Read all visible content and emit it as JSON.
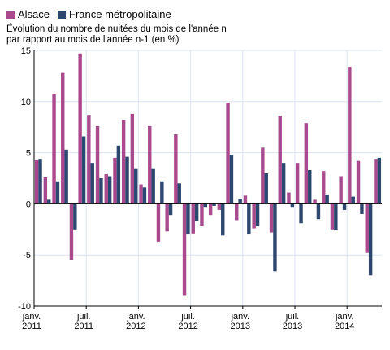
{
  "colors": {
    "alsace": "#a94a8f",
    "france": "#2c4770",
    "grid": "#dce3f0",
    "axis": "#000000"
  },
  "chart_data": {
    "type": "bar",
    "subtitle_lines": [
      "Évolution du nombre de nuitées du mois de l'année n",
      "par rapport au mois de l'année n-1 (en %)"
    ],
    "ylim": [
      -10,
      15
    ],
    "yticks": [
      -10,
      -5,
      0,
      5,
      10,
      15
    ],
    "ytick_labels": [
      "-10",
      "-5",
      "0",
      "5",
      "10",
      "15"
    ],
    "grid": true,
    "legend_position": "top-left",
    "x_tick_labels": [
      {
        "index": 0,
        "line1": "janv.",
        "line2": "2011"
      },
      {
        "index": 6,
        "line1": "juil.",
        "line2": "2011"
      },
      {
        "index": 12,
        "line1": "janv.",
        "line2": "2012"
      },
      {
        "index": 18,
        "line1": "juil.",
        "line2": "2012"
      },
      {
        "index": 24,
        "line1": "janv.",
        "line2": "2013"
      },
      {
        "index": 30,
        "line1": "juil.",
        "line2": "2013"
      },
      {
        "index": 36,
        "line1": "janv.",
        "line2": "2014"
      }
    ],
    "categories": [
      "2011-01",
      "2011-02",
      "2011-03",
      "2011-04",
      "2011-05",
      "2011-06",
      "2011-07",
      "2011-08",
      "2011-09",
      "2011-10",
      "2011-11",
      "2011-12",
      "2012-01",
      "2012-02",
      "2012-03",
      "2012-04",
      "2012-05",
      "2012-06",
      "2012-07",
      "2012-08",
      "2012-09",
      "2012-10",
      "2012-11",
      "2012-12",
      "2013-01",
      "2013-02",
      "2013-03",
      "2013-04",
      "2013-05",
      "2013-06",
      "2013-07",
      "2013-08",
      "2013-09",
      "2013-10",
      "2013-11",
      "2013-12",
      "2014-01",
      "2014-02",
      "2014-03",
      "2014-04"
    ],
    "series": [
      {
        "name": "Alsace",
        "values": [
          4.3,
          2.6,
          10.7,
          12.8,
          -5.5,
          14.7,
          8.7,
          7.6,
          2.9,
          4.5,
          8.2,
          8.8,
          1.9,
          7.6,
          -3.7,
          -2.7,
          6.8,
          -9.0,
          -2.9,
          -2.2,
          -1.1,
          -0.6,
          9.9,
          -1.6,
          0.8,
          -2.4,
          5.5,
          -2.8,
          8.6,
          1.1,
          4.0,
          7.9,
          0.4,
          3.2,
          -2.5,
          2.7,
          13.4,
          4.2,
          -4.8,
          4.4
        ]
      },
      {
        "name": "France métropolitaine",
        "values": [
          4.4,
          0.4,
          2.2,
          5.3,
          -2.5,
          6.6,
          4.0,
          2.5,
          2.7,
          5.7,
          4.6,
          3.4,
          1.6,
          3.4,
          2.2,
          -1.1,
          2.0,
          -3.0,
          -1.7,
          -0.3,
          -0.2,
          -3.1,
          4.8,
          0.5,
          -3.0,
          -2.2,
          3.0,
          -6.6,
          4.0,
          -0.3,
          -1.9,
          3.3,
          -1.5,
          0.9,
          -2.6,
          -0.6,
          0.7,
          -1.0,
          -7.0,
          4.5
        ]
      }
    ]
  }
}
